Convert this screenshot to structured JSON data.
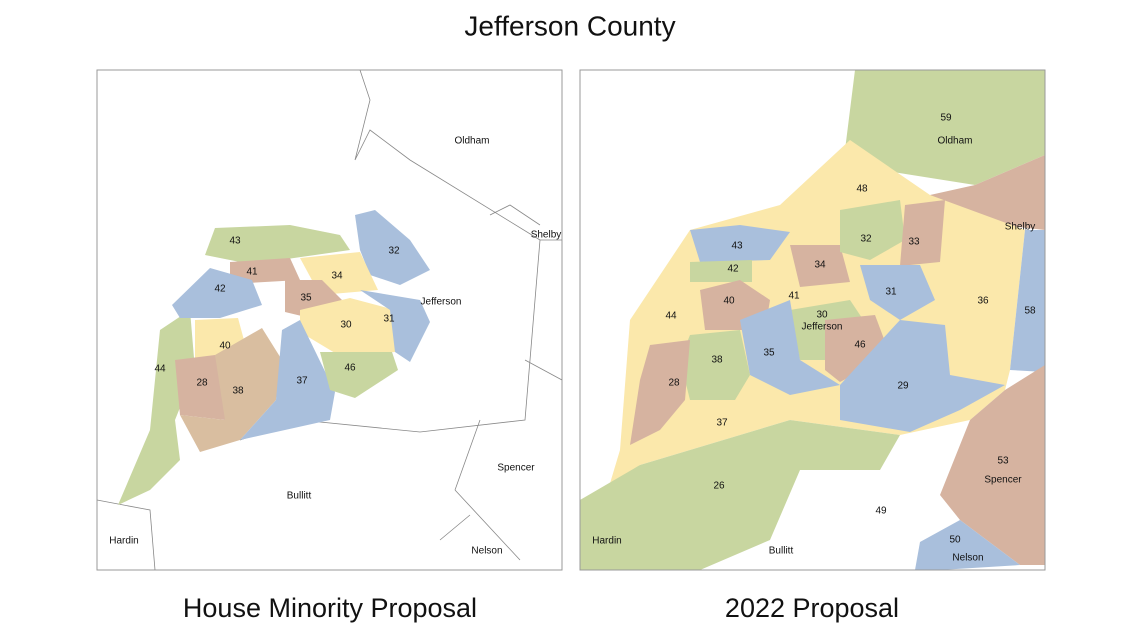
{
  "title": "Jefferson County",
  "maps": [
    {
      "caption": "House Minority Proposal",
      "districts": [
        "43",
        "32",
        "41",
        "34",
        "42",
        "35",
        "30",
        "31",
        "40",
        "44",
        "28",
        "38",
        "37",
        "46"
      ],
      "counties": [
        "Oldham",
        "Shelby",
        "Jefferson",
        "Spencer",
        "Bullitt",
        "Hardin",
        "Nelson"
      ]
    },
    {
      "caption": "2022 Proposal",
      "districts": [
        "59",
        "48",
        "43",
        "32",
        "33",
        "42",
        "34",
        "41",
        "31",
        "40",
        "30",
        "36",
        "58",
        "44",
        "38",
        "35",
        "46",
        "28",
        "29",
        "37",
        "26",
        "53",
        "49",
        "50"
      ],
      "counties": [
        "Oldham",
        "Shelby",
        "Jefferson",
        "Spencer",
        "Bullitt",
        "Hardin",
        "Nelson"
      ]
    }
  ]
}
